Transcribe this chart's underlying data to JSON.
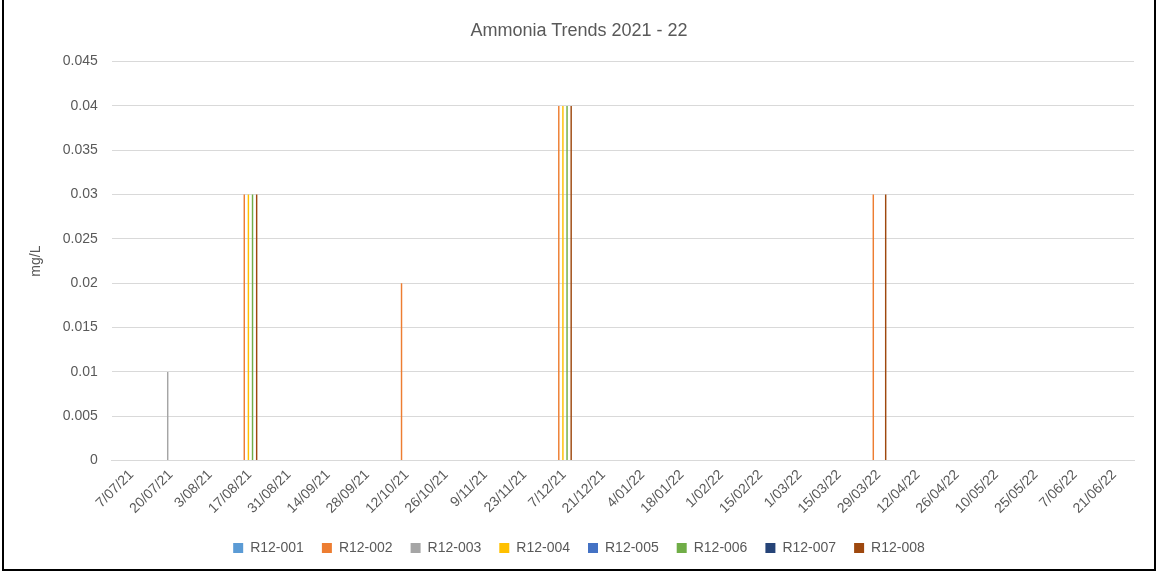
{
  "chart_data": {
    "type": "bar",
    "title": "Ammonia Trends 2021 - 22",
    "ylabel": "mg/L",
    "categories": [
      "7/07/21",
      "20/07/21",
      "3/08/21",
      "17/08/21",
      "31/08/21",
      "14/09/21",
      "28/09/21",
      "12/10/21",
      "26/10/21",
      "9/11/21",
      "23/11/21",
      "7/12/21",
      "21/12/21",
      "4/01/22",
      "18/01/22",
      "1/02/22",
      "15/02/22",
      "1/03/22",
      "15/03/22",
      "29/03/22",
      "12/04/22",
      "26/04/22",
      "10/05/22",
      "25/05/22",
      "7/06/22",
      "21/06/22"
    ],
    "series": [
      {
        "name": "R12-001",
        "color": "#5b9bd5",
        "values": [
          null,
          null,
          null,
          null,
          null,
          null,
          null,
          null,
          null,
          null,
          null,
          null,
          null,
          null,
          null,
          null,
          null,
          null,
          null,
          null,
          null,
          null,
          null,
          null,
          null,
          null
        ]
      },
      {
        "name": "R12-002",
        "color": "#ed7d31",
        "values": [
          null,
          null,
          null,
          0.03,
          null,
          null,
          null,
          0.02,
          null,
          null,
          null,
          0.04,
          null,
          null,
          null,
          null,
          null,
          null,
          null,
          0.03,
          null,
          null,
          null,
          null,
          null,
          null
        ]
      },
      {
        "name": "R12-003",
        "color": "#a5a5a5",
        "values": [
          null,
          0.01,
          null,
          null,
          null,
          null,
          null,
          null,
          null,
          null,
          null,
          null,
          null,
          null,
          null,
          null,
          null,
          null,
          null,
          null,
          null,
          null,
          null,
          null,
          null,
          null
        ]
      },
      {
        "name": "R12-004",
        "color": "#ffc000",
        "values": [
          null,
          null,
          null,
          0.03,
          null,
          null,
          null,
          null,
          null,
          null,
          null,
          0.04,
          null,
          null,
          null,
          null,
          null,
          null,
          null,
          null,
          null,
          null,
          null,
          null,
          null,
          null
        ]
      },
      {
        "name": "R12-005",
        "color": "#4472c4",
        "values": [
          null,
          null,
          null,
          null,
          null,
          null,
          null,
          null,
          null,
          null,
          null,
          null,
          null,
          null,
          null,
          null,
          null,
          null,
          null,
          null,
          null,
          null,
          null,
          null,
          null,
          null
        ]
      },
      {
        "name": "R12-006",
        "color": "#70ad47",
        "values": [
          null,
          null,
          null,
          0.03,
          null,
          null,
          null,
          null,
          null,
          null,
          null,
          0.04,
          null,
          null,
          null,
          null,
          null,
          null,
          null,
          null,
          null,
          null,
          null,
          null,
          null,
          null
        ]
      },
      {
        "name": "R12-007",
        "color": "#264478",
        "values": [
          null,
          null,
          null,
          null,
          null,
          null,
          null,
          null,
          null,
          null,
          null,
          null,
          null,
          null,
          null,
          null,
          null,
          null,
          null,
          null,
          null,
          null,
          null,
          null,
          null,
          null
        ]
      },
      {
        "name": "R12-008",
        "color": "#9e480e",
        "values": [
          null,
          null,
          null,
          0.03,
          null,
          null,
          null,
          null,
          null,
          null,
          null,
          0.04,
          null,
          null,
          null,
          null,
          null,
          null,
          null,
          0.03,
          null,
          null,
          null,
          null,
          null,
          null
        ]
      }
    ],
    "ylim": [
      0,
      0.045
    ],
    "yticks": [
      0,
      0.005,
      0.01,
      0.015,
      0.02,
      0.025,
      0.03,
      0.035,
      0.04,
      0.045
    ],
    "grid": "y",
    "legend": "bottom"
  }
}
